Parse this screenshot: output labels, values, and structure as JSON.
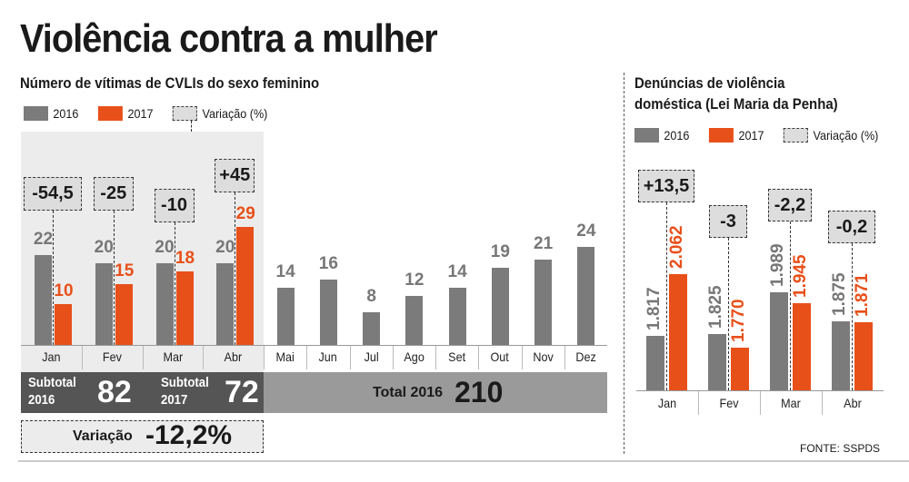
{
  "title": "Violência contra a mulher",
  "colors": {
    "y2016": "#7b7b7b",
    "y2017": "#e8501a",
    "shade": "#ececec"
  },
  "chart_data": [
    {
      "type": "bar",
      "title": "Número de vítimas de CVLIs do sexo feminino",
      "legend": [
        "2016",
        "2017",
        "Variação (%)"
      ],
      "categories": [
        "Jan",
        "Fev",
        "Mar",
        "Abr",
        "Mai",
        "Jun",
        "Jul",
        "Ago",
        "Set",
        "Out",
        "Nov",
        "Dez"
      ],
      "series": [
        {
          "name": "2016",
          "values": [
            22,
            20,
            20,
            20,
            14,
            16,
            8,
            12,
            14,
            19,
            21,
            24
          ]
        },
        {
          "name": "2017",
          "values": [
            10,
            15,
            18,
            29,
            null,
            null,
            null,
            null,
            null,
            null,
            null,
            null
          ]
        }
      ],
      "variation": [
        "-54,5",
        "-25",
        "-10",
        "+45"
      ],
      "subtotal_2016": {
        "label1": "Subtotal",
        "label2": "2016",
        "value": "82"
      },
      "subtotal_2017": {
        "label1": "Subtotal",
        "label2": "2017",
        "value": "72"
      },
      "total_2016": {
        "label": "Total 2016",
        "value": "210"
      },
      "variation_total": {
        "label": "Variação",
        "value": "-12,2%"
      }
    },
    {
      "type": "bar",
      "title": [
        "Denúncias de violência",
        "doméstica (Lei Maria da Penha)"
      ],
      "legend": [
        "2016",
        "2017",
        "Variação (%)"
      ],
      "categories": [
        "Jan",
        "Fev",
        "Mar",
        "Abr"
      ],
      "series": [
        {
          "name": "2016",
          "values": [
            1817,
            1825,
            1989,
            1875
          ],
          "labels": [
            "1.817",
            "1.825",
            "1.989",
            "1.875"
          ]
        },
        {
          "name": "2017",
          "values": [
            2062,
            1770,
            1945,
            1871
          ],
          "labels": [
            "2.062",
            "1.770",
            "1.945",
            "1.871"
          ]
        }
      ],
      "variation": [
        "+13,5",
        "-3",
        "-2,2",
        "-0,2"
      ]
    }
  ],
  "source": "FONTE: SSPDS"
}
